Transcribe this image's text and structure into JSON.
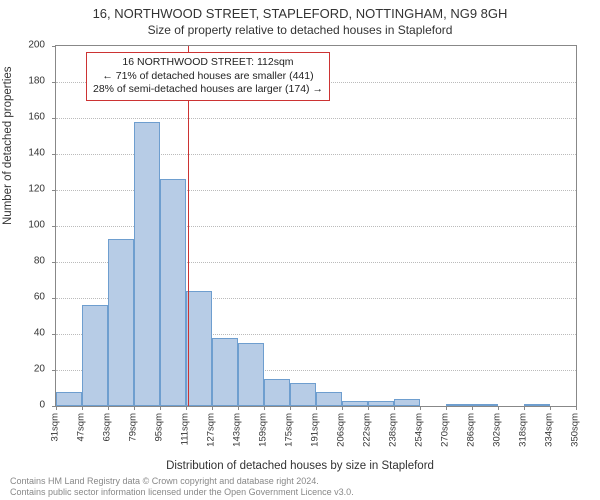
{
  "title_main": "16, NORTHWOOD STREET, STAPLEFORD, NOTTINGHAM, NG9 8GH",
  "title_sub": "Size of property relative to detached houses in Stapleford",
  "ylabel": "Number of detached properties",
  "xlabel": "Distribution of detached houses by size in Stapleford",
  "footer_line1": "Contains HM Land Registry data © Crown copyright and database right 2024.",
  "footer_line2": "Contains public sector information licensed under the Open Government Licence v3.0.",
  "annotation": {
    "line1": "16 NORTHWOOD STREET: 112sqm",
    "line2": "← 71% of detached houses are smaller (441)",
    "line3": "28% of semi-detached houses are larger (174) →"
  },
  "chart": {
    "type": "histogram",
    "bar_fill": "#b7cce6",
    "bar_border": "#6e9ecf",
    "grid_color": "#bbbbbb",
    "axis_color": "#888888",
    "refline_color": "#cc3333",
    "annotation_border": "#cc3333",
    "background": "#ffffff",
    "text_color": "#333333",
    "title_fontsize": 13,
    "subtitle_fontsize": 12,
    "label_fontsize": 11.5,
    "tick_fontsize": 10,
    "annotation_fontsize": 10.5,
    "ylim": [
      0,
      200
    ],
    "yticks": [
      0,
      20,
      40,
      60,
      80,
      100,
      120,
      140,
      160,
      180,
      200
    ],
    "x_start": 31,
    "x_step": 16,
    "x_count": 21,
    "xtick_labels": [
      "31sqm",
      "47sqm",
      "63sqm",
      "79sqm",
      "95sqm",
      "111sqm",
      "127sqm",
      "143sqm",
      "159sqm",
      "175sqm",
      "191sqm",
      "206sqm",
      "222sqm",
      "238sqm",
      "254sqm",
      "270sqm",
      "286sqm",
      "302sqm",
      "318sqm",
      "334sqm",
      "350sqm"
    ],
    "values": [
      8,
      56,
      93,
      158,
      126,
      64,
      38,
      35,
      15,
      13,
      8,
      3,
      3,
      4,
      0,
      1,
      1,
      0,
      1,
      0
    ],
    "refline_x": 112
  }
}
